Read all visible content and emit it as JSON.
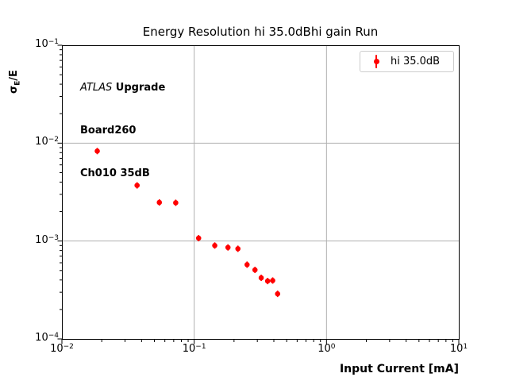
{
  "title": "Energy Resolution hi 35.0dBhi gain Run",
  "annotation": {
    "line1_italic": "ATLAS",
    "line1_bold": " Upgrade",
    "line2": "Board260",
    "line3": "Ch010 35dB"
  },
  "legend": {
    "label": "hi 35.0dB",
    "marker_color": "#ff0000",
    "edge_color": "#cccccc"
  },
  "axes": {
    "xlabel": "Input Current [mA]",
    "ylabel_sigma": "σ",
    "ylabel_sub": "E",
    "ylabel_rest": "/E",
    "xtick_labels": [
      "10⁻²",
      "10⁻¹",
      "10⁰",
      "10¹"
    ],
    "ytick_labels": [
      "10⁻¹",
      "10⁻²",
      "10⁻³",
      "10⁻⁴"
    ],
    "xtick_exponents": [
      -2,
      -1,
      0,
      1
    ],
    "ytick_exponents": [
      -1,
      -2,
      -3,
      -4
    ],
    "grid_color": "#b0b0b0",
    "spine_color": "#000000"
  },
  "chart_data": {
    "type": "scatter",
    "title": "Energy Resolution hi 35.0dBhi gain Run",
    "xlabel": "Input Current [mA]",
    "ylabel": "σE/E",
    "xscale": "log",
    "yscale": "log",
    "xlim": [
      0.01,
      10
    ],
    "ylim": [
      0.0001,
      0.1
    ],
    "grid": "major",
    "legend_position": "upper right",
    "series": [
      {
        "name": "hi 35.0dB",
        "color": "#ff0000",
        "marker": "circle-errorbar",
        "x": [
          0.0185,
          0.037,
          0.0545,
          0.0725,
          0.108,
          0.143,
          0.18,
          0.214,
          0.251,
          0.288,
          0.321,
          0.359,
          0.392,
          0.427
        ],
        "y": [
          0.0083,
          0.0037,
          0.00248,
          0.00246,
          0.00107,
          0.0009,
          0.00086,
          0.000834,
          0.000574,
          0.000507,
          0.000421,
          0.00039,
          0.000395,
          0.000289
        ]
      }
    ]
  }
}
